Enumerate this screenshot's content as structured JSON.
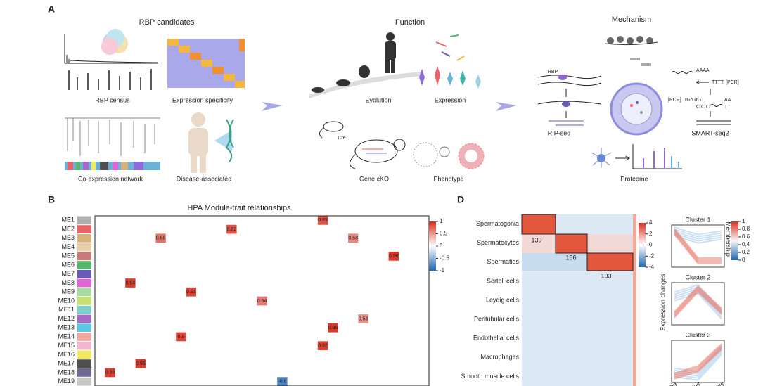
{
  "panel_a": {
    "label": "A",
    "rbp": {
      "title": "RBP candidates",
      "census": "RBP census",
      "specificity": "Expression specificity",
      "network": "Co-expression network",
      "disease": "Disease-associated"
    },
    "function": {
      "title": "Function",
      "evolution": "Evolution",
      "expression": "Expression",
      "cre": "Cre",
      "cko": "Gene cKO",
      "phenotype": "Phenotype"
    },
    "mechanism": {
      "title": "Mechanism",
      "rbp": "RBP",
      "ripseq": "RIP-seq",
      "smartseq": "SMART-seq2",
      "proteome": "Proteome",
      "polya": "AAAA",
      "polyt": "TTTT",
      "pcr1": "[PCR]",
      "pcr2": "[PCR]",
      "rg": "rGrGrG",
      "ccc": "C C C",
      "tt": "TT",
      "aa": "AA"
    }
  },
  "panel_b": {
    "label": "B",
    "title": "HPA Module-trait relationships",
    "rows": [
      "ME1",
      "ME2",
      "ME3",
      "ME4",
      "ME5",
      "ME6",
      "ME7",
      "ME8",
      "ME9",
      "ME10",
      "ME11",
      "ME12",
      "ME13",
      "ME14",
      "ME15",
      "ME16",
      "ME17",
      "ME18",
      "ME19"
    ],
    "row_colors": [
      "#b0b0b0",
      "#e8636a",
      "#d8b27a",
      "#e9cfa8",
      "#c97a7a",
      "#56b86a",
      "#6a5ab8",
      "#e066d8",
      "#a8dca0",
      "#c8e070",
      "#7ccfc8",
      "#a868c8",
      "#5cc8e8",
      "#f0a8a0",
      "#f0b8d0",
      "#f2e860",
      "#505050",
      "#706890",
      "#c8c8c8"
    ],
    "cells": [
      {
        "row": 0,
        "col": 22,
        "value": 0.83
      },
      {
        "row": 1,
        "col": 13,
        "value": 0.82
      },
      {
        "row": 2,
        "col": 6,
        "value": 0.68
      },
      {
        "row": 2,
        "col": 25,
        "value": 0.58
      },
      {
        "row": 4,
        "col": 29,
        "value": 0.96
      },
      {
        "row": 7,
        "col": 3,
        "value": 0.94
      },
      {
        "row": 8,
        "col": 9,
        "value": 0.91
      },
      {
        "row": 9,
        "col": 16,
        "value": 0.64
      },
      {
        "row": 11,
        "col": 26,
        "value": 0.53
      },
      {
        "row": 12,
        "col": 23,
        "value": 0.95
      },
      {
        "row": 13,
        "col": 8,
        "value": 0.9
      },
      {
        "row": 14,
        "col": 22,
        "value": 0.92
      },
      {
        "row": 16,
        "col": 4,
        "value": 0.95
      },
      {
        "row": 17,
        "col": 1,
        "value": 0.93
      },
      {
        "row": 18,
        "col": 18,
        "value": -0.8
      }
    ],
    "colorbar": {
      "lim": [
        -1,
        1
      ],
      "ticks": [
        1,
        0.5,
        0,
        -0.5,
        -1
      ]
    }
  },
  "panel_d": {
    "label": "D",
    "rows": [
      "Spermatogonia",
      "Spermatocytes",
      "Spermatids",
      "Sertoli cells",
      "Leydig cells",
      "Peritubular cells",
      "Endothelial  cells",
      "Macrophages",
      "Smooth muscle cells"
    ],
    "counts": [
      139,
      166,
      193
    ],
    "colorbar": {
      "lim": [
        -4,
        4
      ],
      "ticks": [
        4,
        2,
        0,
        -2,
        -4
      ]
    },
    "clusters": [
      "Cluster 1",
      "Cluster 2",
      "Cluster 3"
    ],
    "ylabel": "Expression changes",
    "xlabels": [
      "onia",
      "cytes",
      "atids"
    ],
    "membership": {
      "label": "Membership",
      "lim": [
        0,
        1
      ],
      "ticks": [
        1,
        0.8,
        0.6,
        0.4,
        0.2,
        0
      ]
    }
  }
}
